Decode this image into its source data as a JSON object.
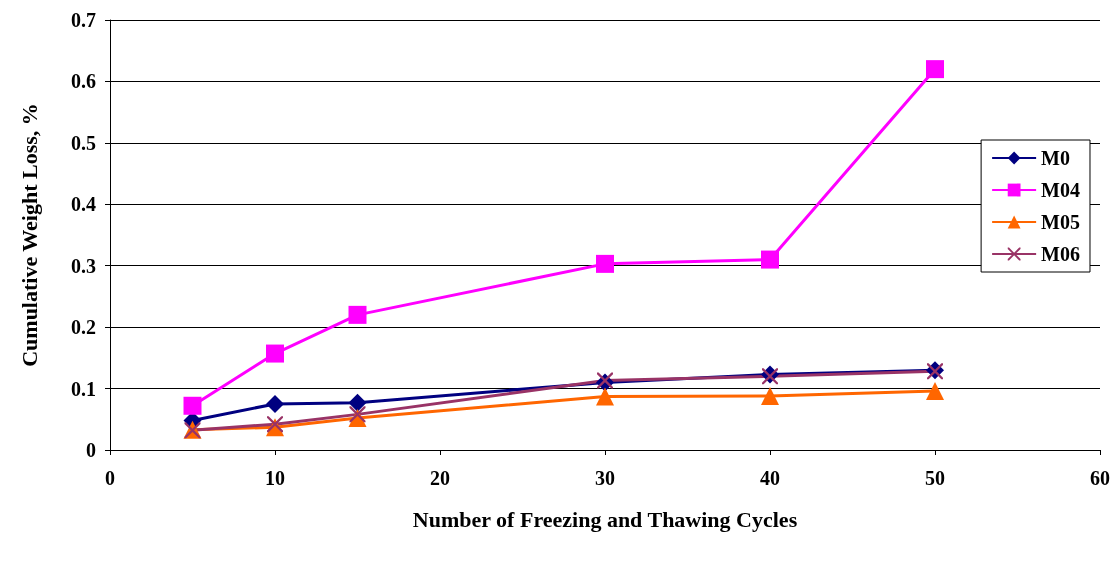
{
  "chart_data": {
    "type": "line",
    "xlabel": "Number of Freezing and Thawing Cycles",
    "ylabel": "Cumulative Weight Loss, %",
    "x": [
      5,
      10,
      15,
      30,
      40,
      50
    ],
    "series": [
      {
        "name": "M0",
        "color": "#000080",
        "marker": "diamond",
        "values": [
          0.048,
          0.075,
          0.077,
          0.11,
          0.123,
          0.13
        ]
      },
      {
        "name": "M04",
        "color": "#ff00ff",
        "marker": "square",
        "values": [
          0.072,
          0.157,
          0.22,
          0.303,
          0.31,
          0.62
        ]
      },
      {
        "name": "M05",
        "color": "#ff6600",
        "marker": "triangle",
        "values": [
          0.033,
          0.037,
          0.052,
          0.087,
          0.088,
          0.096
        ]
      },
      {
        "name": "M06",
        "color": "#993366",
        "marker": "cross",
        "values": [
          0.032,
          0.042,
          0.058,
          0.113,
          0.12,
          0.128
        ]
      }
    ],
    "xlim": [
      0,
      60
    ],
    "xticks": [
      0,
      10,
      20,
      30,
      40,
      50,
      60
    ],
    "ylim": [
      0,
      0.7
    ],
    "yticks": [
      0,
      0.1,
      0.2,
      0.3,
      0.4,
      0.5,
      0.6,
      0.7
    ],
    "grid": "y",
    "legend": "right"
  }
}
